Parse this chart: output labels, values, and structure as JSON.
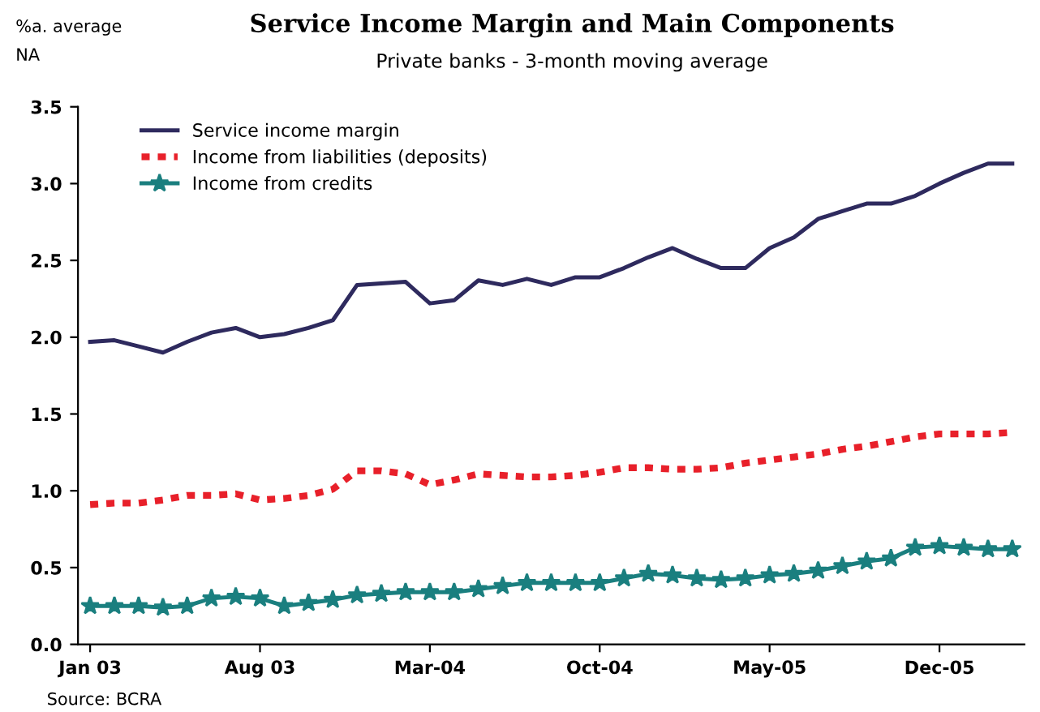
{
  "chart_data": {
    "type": "line",
    "title": "Service Income Margin and Main Components",
    "subtitle": "Private banks - 3-month moving average",
    "ylabel": "%a. average",
    "annotations": [
      "NA",
      "Source: BCRA"
    ],
    "categories": [
      "Jan 03",
      null,
      null,
      null,
      null,
      null,
      null,
      "Aug 03",
      null,
      null,
      null,
      null,
      null,
      null,
      "Mar-04",
      null,
      null,
      null,
      null,
      null,
      null,
      "Oct-04",
      null,
      null,
      null,
      null,
      null,
      null,
      "May-05",
      null,
      null,
      null,
      null,
      null,
      null,
      "Dec-05",
      null,
      null,
      null
    ],
    "series": [
      {
        "name": "Service income margin",
        "color": "#2e2a5e",
        "line_style": "solid",
        "marker": "none",
        "values": [
          1.97,
          1.98,
          1.94,
          1.9,
          1.97,
          2.03,
          2.06,
          2.0,
          2.02,
          2.06,
          2.11,
          2.34,
          2.35,
          2.36,
          2.22,
          2.24,
          2.37,
          2.34,
          2.38,
          2.34,
          2.39,
          2.39,
          2.45,
          2.52,
          2.58,
          2.51,
          2.45,
          2.45,
          2.58,
          2.65,
          2.77,
          2.82,
          2.87,
          2.87,
          2.92,
          3.0,
          3.07,
          3.13,
          3.13
        ]
      },
      {
        "name": "Income from liabilities (deposits)",
        "color": "#e8202a",
        "line_style": "dotted",
        "marker": "none",
        "values": [
          0.91,
          0.92,
          0.92,
          0.94,
          0.97,
          0.97,
          0.98,
          0.94,
          0.95,
          0.97,
          1.01,
          1.13,
          1.13,
          1.11,
          1.04,
          1.07,
          1.11,
          1.1,
          1.09,
          1.09,
          1.1,
          1.12,
          1.15,
          1.15,
          1.14,
          1.14,
          1.15,
          1.18,
          1.2,
          1.22,
          1.24,
          1.27,
          1.29,
          1.32,
          1.35,
          1.37,
          1.37,
          1.37,
          1.38
        ]
      },
      {
        "name": "Income from credits",
        "color": "#1a7f7f",
        "line_style": "solid",
        "marker": "star",
        "values": [
          0.25,
          0.25,
          0.25,
          0.24,
          0.25,
          0.3,
          0.31,
          0.3,
          0.25,
          0.27,
          0.29,
          0.32,
          0.33,
          0.34,
          0.34,
          0.34,
          0.36,
          0.38,
          0.4,
          0.4,
          0.4,
          0.4,
          0.43,
          0.46,
          0.45,
          0.43,
          0.42,
          0.43,
          0.45,
          0.46,
          0.48,
          0.51,
          0.54,
          0.56,
          0.63,
          0.64,
          0.63,
          0.62,
          0.62
        ]
      }
    ],
    "ylim": [
      0,
      3.5
    ],
    "yticks": [
      {
        "value": 0,
        "label": "0.0"
      },
      {
        "value": 0.5,
        "label": "0.5"
      },
      {
        "value": 1,
        "label": "1.0"
      },
      {
        "value": 1.5,
        "label": "1.5"
      },
      {
        "value": 2,
        "label": "2.0"
      },
      {
        "value": 2.5,
        "label": "2.5"
      },
      {
        "value": 3,
        "label": "3.0"
      },
      {
        "value": 3.5,
        "label": "3.5"
      }
    ],
    "legend": "top left",
    "grid": false
  }
}
